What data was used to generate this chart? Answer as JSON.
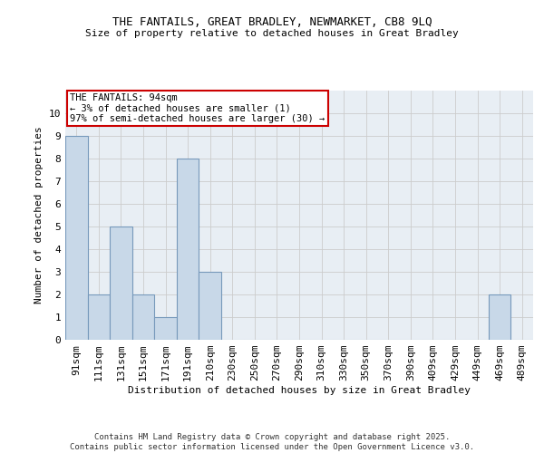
{
  "title1": "THE FANTAILS, GREAT BRADLEY, NEWMARKET, CB8 9LQ",
  "title2": "Size of property relative to detached houses in Great Bradley",
  "xlabel": "Distribution of detached houses by size in Great Bradley",
  "ylabel": "Number of detached properties",
  "categories": [
    "91sqm",
    "111sqm",
    "131sqm",
    "151sqm",
    "171sqm",
    "191sqm",
    "210sqm",
    "230sqm",
    "250sqm",
    "270sqm",
    "290sqm",
    "310sqm",
    "330sqm",
    "350sqm",
    "370sqm",
    "390sqm",
    "409sqm",
    "429sqm",
    "449sqm",
    "469sqm",
    "489sqm"
  ],
  "values": [
    9,
    2,
    5,
    2,
    1,
    8,
    3,
    0,
    0,
    0,
    0,
    0,
    0,
    0,
    0,
    0,
    0,
    0,
    0,
    2,
    0
  ],
  "bar_color": "#c8d8e8",
  "bar_edge_color": "#7799bb",
  "annotation_box_text": "THE FANTAILS: 94sqm\n← 3% of detached houses are smaller (1)\n97% of semi-detached houses are larger (30) →",
  "annotation_box_color": "#ffffff",
  "annotation_box_edge_color": "#cc0000",
  "ylim": [
    0,
    11
  ],
  "yticks": [
    0,
    1,
    2,
    3,
    4,
    5,
    6,
    7,
    8,
    9,
    10
  ],
  "grid_color": "#cccccc",
  "footer_text": "Contains HM Land Registry data © Crown copyright and database right 2025.\nContains public sector information licensed under the Open Government Licence v3.0.",
  "bg_color": "#e8eef4"
}
